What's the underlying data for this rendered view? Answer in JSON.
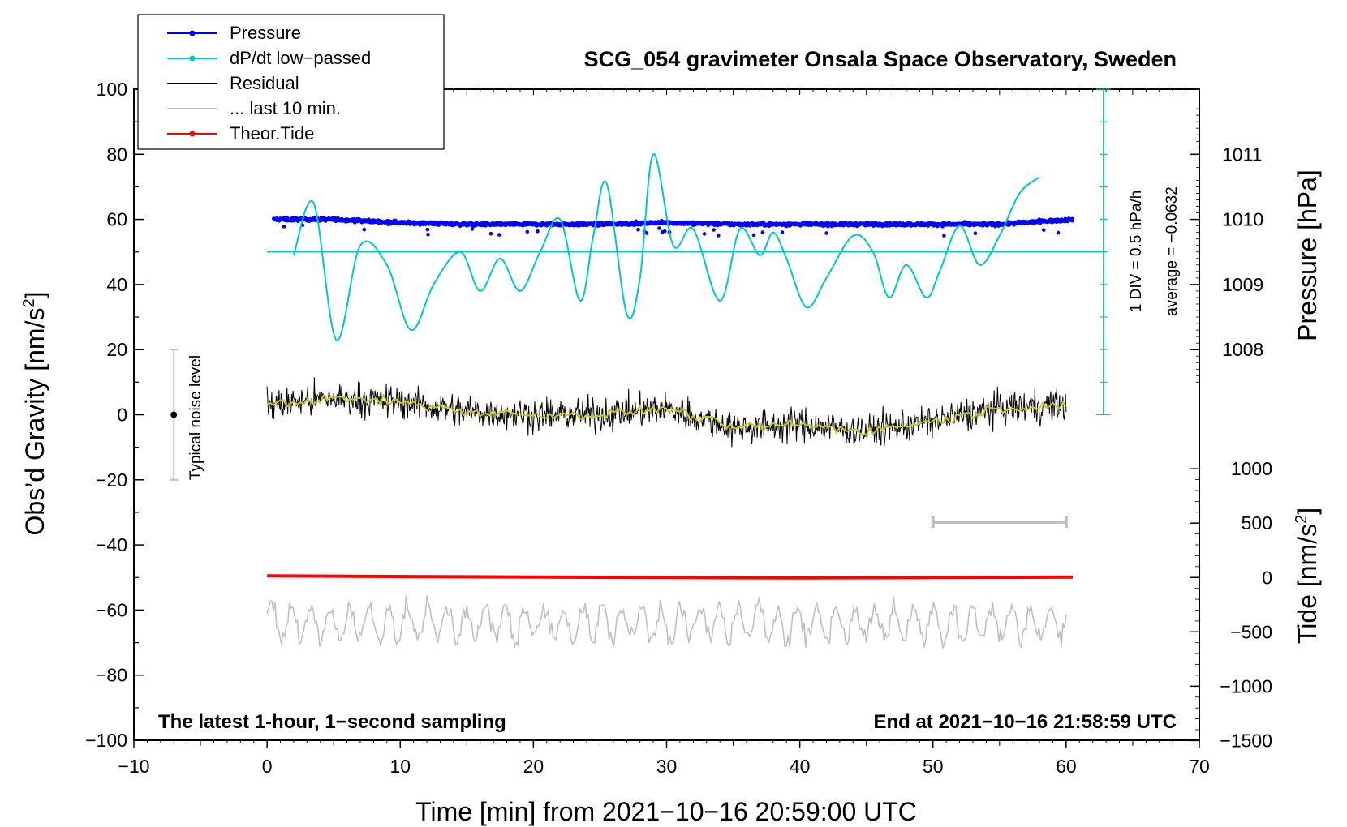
{
  "chart_data": {
    "type": "line",
    "title": "SCG_054 gravimeter Onsala Space Observatory, Sweden",
    "xlabel": "Time [min] from 2021−10−16 20:59:00 UTC",
    "ylabel_left": "Obs’d Gravity [nm/s",
    "ylabel_left_sup": "2",
    "ylabel_left_tail": "]",
    "ylabel_pressure": "Pressure [hPa]",
    "ylabel_tide": "Tide [nm/s",
    "ylabel_tide_sup": "2",
    "ylabel_tide_tail": "]",
    "xlim": [
      -10,
      70
    ],
    "ylim": [
      -100,
      100
    ],
    "x_ticks": [
      "−10",
      "0",
      "10",
      "20",
      "30",
      "40",
      "50",
      "60",
      "70"
    ],
    "x_tick_values": [
      -10,
      0,
      10,
      20,
      30,
      40,
      50,
      60,
      70
    ],
    "y_ticks": [
      "100",
      "80",
      "60",
      "40",
      "20",
      "0",
      "−20",
      "−40",
      "−60",
      "−80",
      "−100"
    ],
    "y_tick_values": [
      100,
      80,
      60,
      40,
      20,
      0,
      -20,
      -40,
      -60,
      -80,
      -100
    ],
    "pressure_ticks": [
      "1011",
      "1010",
      "1009",
      "1008"
    ],
    "pressure_tick_values": [
      1011,
      1010,
      1009,
      1008
    ],
    "tide_ticks": [
      "1000",
      "500",
      "0",
      "−500",
      "−1000",
      "−1500"
    ],
    "tide_tick_values": [
      1000,
      500,
      0,
      -500,
      -1000,
      -1500
    ],
    "note_left": "The latest 1-hour, 1−second sampling",
    "note_right": "End at 2021−10−16 21:58:59 UTC",
    "noise_label": "Typical noise level",
    "noise_center": 0,
    "noise_range": [
      -20,
      20
    ],
    "div_label": "1 DIV = 0.5 hPa/h",
    "average_label": "average = −0.0632",
    "ten_min_bar": [
      50,
      60
    ],
    "legend": [
      {
        "label": "Pressure",
        "color": "#0000ff",
        "marker": true
      },
      {
        "label": "dP/dt low−passed",
        "color": "#00c8c8",
        "marker": true
      },
      {
        "label": "Residual",
        "color": "#000000",
        "marker": false
      },
      {
        "label": "... last 10 min.",
        "color": "#c0c0c0",
        "marker": false
      },
      {
        "label": "Theor.Tide",
        "color": "#ff0000",
        "marker": true
      }
    ],
    "series": [
      {
        "name": "Pressure",
        "color": "#0000ff",
        "style": "points",
        "x": [
          0.5,
          5,
          10,
          15,
          20,
          25,
          30,
          35,
          40,
          45,
          50,
          55,
          60.5
        ],
        "y": [
          60,
          60,
          59,
          58.5,
          58.5,
          58.5,
          59,
          58.5,
          58.5,
          58.5,
          58.5,
          58.5,
          60
        ]
      },
      {
        "name": "dP/dt low-passed",
        "color": "#00c8c8",
        "style": "line",
        "x": [
          2,
          3.5,
          5.2,
          7,
          9,
          10.8,
          12.5,
          14.5,
          16,
          17.5,
          19,
          20.5,
          22,
          23.5,
          24.5,
          25.5,
          27,
          28,
          29,
          30.5,
          32,
          34,
          35.5,
          37,
          38,
          39,
          40.5,
          42,
          44,
          45.5,
          46.7,
          48,
          49.5,
          50.5,
          52,
          53.5,
          55,
          56.5,
          58
        ],
        "y": [
          49,
          65,
          23,
          52,
          46,
          26,
          40,
          50,
          38,
          48,
          38,
          50,
          60,
          35,
          55,
          71,
          31,
          42,
          80,
          52,
          57,
          35,
          57,
          49,
          56,
          48,
          33,
          42,
          55,
          50,
          36,
          46,
          36,
          44,
          58,
          46,
          55,
          68,
          73
        ]
      },
      {
        "name": "Residual",
        "color": "#000000",
        "style": "noise",
        "x": [
          0,
          5,
          10,
          15,
          20,
          25,
          30,
          35,
          40,
          45,
          50,
          55,
          60
        ],
        "y": [
          3,
          5,
          4,
          1,
          0,
          0,
          2,
          -4,
          -3,
          -5,
          -2,
          2,
          3
        ]
      },
      {
        "name": "Residual smoothed",
        "color": "#c8c820",
        "style": "line",
        "x": [
          0,
          5,
          10,
          15,
          20,
          25,
          30,
          35,
          40,
          45,
          50,
          55,
          60
        ],
        "y": [
          3,
          5,
          4,
          1,
          0,
          0,
          2,
          -4,
          -3,
          -5,
          -2,
          2,
          3
        ]
      },
      {
        "name": "... last 10 min.",
        "color": "#c0c0c0",
        "style": "oscillation",
        "x": [
          0,
          60
        ],
        "y": [
          -64,
          -64
        ]
      },
      {
        "name": "Theor.Tide",
        "color": "#ff0000",
        "style": "line",
        "x": [
          0,
          15,
          30,
          40,
          50,
          60.5
        ],
        "y": [
          -49.5,
          -49.8,
          -50,
          -50.1,
          -50,
          -49.9
        ]
      }
    ]
  }
}
